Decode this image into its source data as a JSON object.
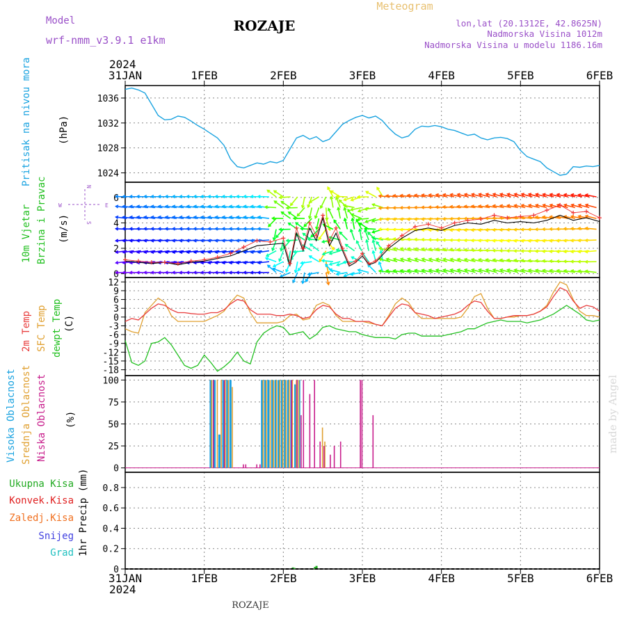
{
  "header": {
    "station_title": "ROZAJE",
    "model_label": "Model",
    "model_name": "wrf-nmm_v3.9.1 e1km",
    "meteogram_label": "Meteogram",
    "lonlat": "lon,lat (20.1312E, 42.8625N)",
    "altitude": "Nadmorska Visina 1012m",
    "model_altitude": "Nadmorska Visina u modelu 1186.16m",
    "footer_station": "ROZAJE",
    "credit": "made by Angel"
  },
  "colors": {
    "pressure": "#1aa3e0",
    "temp2m": "#e83c3c",
    "sfc_temp": "#e0a030",
    "dewpt": "#22c020",
    "high_cloud": "#1a9fe0",
    "mid_cloud": "#e0a030",
    "low_cloud": "#c81e8c",
    "total_precip": "#22aa22",
    "conv_precip": "#e02020",
    "freezing": "#f07020",
    "snow": "#4040e0",
    "hail": "#20c0c0",
    "title_purple": "#9a50c8",
    "meteogram_orange": "#e8c070"
  },
  "chart_data": [
    {
      "panel": "pressure",
      "type": "line",
      "ylabel_rot": "Pritisak na nivou mora",
      "unit": "(hPa)",
      "yticks": [
        1024,
        1028,
        1032,
        1036
      ],
      "ylim": [
        1022.5,
        1038
      ],
      "x_days": [
        0,
        0.083,
        0.167,
        0.25,
        0.333,
        0.417,
        0.5,
        0.583,
        0.667,
        0.75,
        0.833,
        0.917,
        1.0,
        1.083,
        1.167,
        1.25,
        1.333,
        1.417,
        1.5,
        1.583,
        1.667,
        1.75,
        1.833,
        1.917,
        2.0,
        2.083,
        2.167,
        2.25,
        2.333,
        2.417,
        2.5,
        2.583,
        2.667,
        2.75,
        2.833,
        2.917,
        3.0,
        3.083,
        3.167,
        3.25,
        3.333,
        3.417,
        3.5,
        3.583,
        3.667,
        3.75,
        3.833,
        3.917,
        4.0,
        4.083,
        4.167,
        4.25,
        4.333,
        4.417,
        4.5,
        4.583,
        4.667,
        4.75,
        4.833,
        4.917,
        5.0,
        5.083,
        5.167,
        5.25,
        5.333,
        5.417,
        5.5,
        5.583,
        5.667,
        5.75,
        5.833,
        5.917,
        6.0
      ],
      "values": [
        1037.4,
        1037.6,
        1037.3,
        1036.8,
        1035.0,
        1033.2,
        1032.5,
        1032.6,
        1033.1,
        1032.9,
        1032.3,
        1031.6,
        1031.0,
        1030.3,
        1029.6,
        1028.4,
        1026.2,
        1025.0,
        1024.8,
        1025.2,
        1025.6,
        1025.4,
        1025.8,
        1025.6,
        1026.0,
        1027.8,
        1029.6,
        1030.0,
        1029.4,
        1029.8,
        1029.0,
        1029.4,
        1030.6,
        1031.8,
        1032.4,
        1032.9,
        1033.2,
        1032.8,
        1033.1,
        1032.4,
        1031.2,
        1030.2,
        1029.6,
        1029.9,
        1031.0,
        1031.5,
        1031.4,
        1031.6,
        1031.4,
        1031.0,
        1030.8,
        1030.4,
        1030.0,
        1030.2,
        1029.6,
        1029.3,
        1029.6,
        1029.7,
        1029.5,
        1029.0,
        1027.6,
        1026.6,
        1026.2,
        1025.8,
        1024.8,
        1024.2,
        1023.6,
        1023.8,
        1025.0,
        1024.9,
        1025.1,
        1025.0,
        1025.2
      ]
    },
    {
      "panel": "wind",
      "type": "line",
      "ylabel_rot1": "10m Vjetar",
      "ylabel_rot2": "Brzina i Pravac",
      "unit": "(m/s)",
      "compass_n": "N",
      "compass_e": "E",
      "compass_w": "W",
      "compass_s": "S",
      "yticks": [
        0,
        2,
        4,
        6
      ],
      "ylim": [
        -0.3,
        7.2
      ],
      "x_days": [
        0,
        0.167,
        0.333,
        0.5,
        0.667,
        0.833,
        1.0,
        1.167,
        1.333,
        1.5,
        1.667,
        1.833,
        2.0,
        2.083,
        2.167,
        2.25,
        2.333,
        2.417,
        2.5,
        2.583,
        2.667,
        2.75,
        2.833,
        2.917,
        3.0,
        3.083,
        3.167,
        3.333,
        3.5,
        3.667,
        3.833,
        4.0,
        4.167,
        4.333,
        4.5,
        4.667,
        4.833,
        5.0,
        5.167,
        5.333,
        5.5,
        5.667,
        5.833,
        6.0
      ],
      "mean_speed": [
        1.0,
        0.9,
        0.8,
        0.9,
        0.7,
        0.9,
        1.0,
        1.2,
        1.4,
        1.8,
        2.2,
        2.3,
        2.4,
        0.6,
        3.2,
        1.8,
        3.6,
        2.6,
        4.4,
        2.2,
        3.2,
        1.8,
        0.6,
        0.9,
        1.4,
        0.7,
        0.9,
        2.0,
        2.8,
        3.4,
        3.6,
        3.4,
        3.8,
        4.0,
        3.9,
        4.2,
        4.0,
        4.1,
        4.0,
        4.2,
        4.6,
        4.2,
        4.4,
        4.1
      ],
      "gust_speed": [
        1.1,
        1.0,
        0.9,
        0.9,
        0.8,
        1.0,
        1.1,
        1.3,
        1.6,
        2.1,
        2.6,
        2.5,
        2.8,
        0.8,
        3.6,
        2.0,
        4.0,
        3.0,
        4.6,
        2.6,
        3.6,
        2.0,
        0.8,
        1.0,
        1.6,
        0.8,
        1.0,
        2.2,
        3.0,
        3.7,
        3.9,
        3.6,
        4.0,
        4.2,
        4.3,
        4.6,
        4.4,
        4.5,
        4.6,
        5.0,
        5.4,
        4.8,
        4.9,
        4.4
      ]
    },
    {
      "panel": "temperature",
      "type": "line",
      "ylabel_rot1": "2m Temp",
      "ylabel_rot2": "SFC Temp",
      "ylabel_rot3": "dewpt Temp",
      "unit": "(C)",
      "yticks": [
        -18,
        -15,
        -12,
        -9,
        -6,
        -3,
        0,
        3,
        6,
        9,
        12
      ],
      "ylim": [
        -20,
        13.5
      ],
      "x_days": [
        0,
        0.083,
        0.167,
        0.25,
        0.333,
        0.417,
        0.5,
        0.583,
        0.667,
        0.75,
        0.833,
        0.917,
        1.0,
        1.083,
        1.167,
        1.25,
        1.333,
        1.417,
        1.5,
        1.583,
        1.667,
        1.75,
        1.833,
        1.917,
        2.0,
        2.083,
        2.167,
        2.25,
        2.333,
        2.417,
        2.5,
        2.583,
        2.667,
        2.75,
        2.833,
        2.917,
        3.0,
        3.083,
        3.167,
        3.25,
        3.333,
        3.417,
        3.5,
        3.583,
        3.667,
        3.75,
        3.833,
        3.917,
        4.0,
        4.083,
        4.167,
        4.25,
        4.333,
        4.417,
        4.5,
        4.583,
        4.667,
        4.75,
        4.833,
        4.917,
        5.0,
        5.083,
        5.167,
        5.25,
        5.333,
        5.417,
        5.5,
        5.583,
        5.667,
        5.75,
        5.833,
        5.917,
        6.0
      ],
      "series": [
        {
          "name": "2m Temp",
          "values": [
            -1.5,
            -0.5,
            -1.0,
            1.0,
            3.0,
            4.5,
            4.0,
            2.5,
            1.5,
            1.5,
            1.2,
            1.0,
            1.0,
            1.5,
            1.5,
            2.5,
            4.5,
            6.0,
            5.5,
            2.5,
            1.0,
            1.0,
            1.0,
            0.5,
            0.5,
            1.0,
            0.5,
            -0.5,
            0.0,
            2.5,
            4.0,
            3.5,
            1.0,
            -0.5,
            -0.5,
            -1.5,
            -1.5,
            -1.5,
            -2.5,
            -3.0,
            0.0,
            3.0,
            4.5,
            4.0,
            1.5,
            1.0,
            0.5,
            -0.5,
            0.0,
            0.5,
            1.0,
            2.0,
            4.0,
            5.5,
            5.0,
            2.0,
            -0.5,
            -0.5,
            0.0,
            0.5,
            0.5,
            0.5,
            1.0,
            2.0,
            3.5,
            7.0,
            10.0,
            9.0,
            5.5,
            3.0,
            4.0,
            3.5,
            2.0
          ]
        },
        {
          "name": "SFC Temp",
          "values": [
            -4.0,
            -5.0,
            -5.5,
            1.5,
            4.0,
            6.5,
            5.0,
            0.5,
            -1.5,
            -1.5,
            -1.5,
            -1.5,
            -1.5,
            -0.5,
            0.5,
            2.0,
            5.0,
            7.5,
            6.5,
            1.5,
            -2.0,
            -2.0,
            -2.0,
            -2.0,
            -1.5,
            0.5,
            1.0,
            -1.0,
            -0.5,
            4.0,
            5.0,
            4.0,
            0.5,
            -1.5,
            -1.5,
            -1.5,
            -1.5,
            -2.0,
            -2.5,
            -3.0,
            0.5,
            4.5,
            6.5,
            5.0,
            1.5,
            -0.5,
            -0.5,
            -0.5,
            -0.5,
            -0.5,
            -0.5,
            0.0,
            3.0,
            7.0,
            8.0,
            3.0,
            -0.5,
            -0.5,
            0.0,
            0.0,
            0.5,
            0.5,
            1.0,
            2.0,
            4.0,
            8.5,
            12.0,
            11.0,
            6.0,
            2.0,
            0.5,
            0.5,
            0.0
          ]
        },
        {
          "name": "dewpt Temp",
          "values": [
            -8.0,
            -15.5,
            -16.5,
            -15.0,
            -9.0,
            -8.5,
            -7.0,
            -9.5,
            -13.0,
            -16.5,
            -17.5,
            -16.5,
            -13.0,
            -15.5,
            -18.5,
            -17.0,
            -15.0,
            -12.0,
            -15.0,
            -16.0,
            -8.5,
            -5.5,
            -4.0,
            -3.0,
            -3.5,
            -6.0,
            -5.5,
            -5.0,
            -7.5,
            -6.0,
            -3.5,
            -3.0,
            -4.0,
            -4.5,
            -5.0,
            -5.0,
            -6.0,
            -6.5,
            -7.0,
            -7.0,
            -7.0,
            -7.5,
            -6.0,
            -5.5,
            -5.5,
            -6.5,
            -6.5,
            -6.5,
            -6.5,
            -6.0,
            -5.5,
            -5.0,
            -4.0,
            -4.0,
            -3.0,
            -2.0,
            -1.5,
            -1.0,
            -1.5,
            -1.5,
            -1.5,
            -2.0,
            -1.5,
            -1.0,
            0.0,
            1.0,
            2.5,
            4.0,
            2.5,
            1.0,
            -1.0,
            -1.5,
            -1.0
          ]
        }
      ]
    },
    {
      "panel": "clouds",
      "type": "bar",
      "ylabel_rot1": "Visoka Oblacnost",
      "ylabel_rot2": "Srednja Oblacnost",
      "ylabel_rot3": "Niska Oblacnost",
      "unit": "(%)",
      "yticks": [
        0,
        25,
        50,
        75,
        100
      ],
      "ylim": [
        -5,
        105
      ],
      "series": [
        {
          "name": "Visoka Oblacnost",
          "x_days": [
            1.08,
            1.13,
            1.19,
            1.24,
            1.29,
            1.33,
            1.73,
            1.77,
            1.81,
            1.86,
            1.9,
            1.94,
            1.98,
            2.02,
            2.06,
            2.1,
            2.15,
            2.2
          ],
          "values": [
            100,
            100,
            38,
            100,
            100,
            100,
            100,
            100,
            100,
            100,
            100,
            100,
            100,
            100,
            100,
            100,
            95,
            100
          ]
        },
        {
          "name": "Srednja Oblacnost",
          "x_days": [
            1.1,
            1.17,
            1.22,
            1.27,
            1.31,
            1.36,
            1.75,
            1.79,
            1.84,
            1.88,
            1.92,
            1.96,
            2.0,
            2.04,
            2.08,
            2.12,
            2.17,
            2.2,
            2.5,
            2.53
          ],
          "values": [
            100,
            100,
            100,
            100,
            100,
            92,
            100,
            100,
            100,
            100,
            100,
            100,
            100,
            100,
            100,
            100,
            100,
            100,
            46,
            30
          ]
        },
        {
          "name": "Niska Oblacnost",
          "x_days": [
            1.12,
            1.26,
            1.5,
            1.53,
            1.67,
            1.71,
            2.11,
            2.18,
            2.23,
            2.26,
            2.34,
            2.4,
            2.47,
            2.52,
            2.6,
            2.65,
            2.73,
            2.98,
            3.0,
            3.14
          ],
          "values": [
            100,
            100,
            4,
            4,
            4,
            4,
            100,
            100,
            60,
            100,
            84,
            100,
            30,
            25,
            15,
            25,
            30,
            100,
            100,
            60
          ]
        }
      ]
    },
    {
      "panel": "precip",
      "type": "bar",
      "ylabel_rot": "1hr Precip (mm)",
      "yticks": [
        0,
        0.2,
        0.4,
        0.6,
        0.8
      ],
      "ylim": [
        0,
        0.95
      ],
      "legend": [
        "Ukupna Kisa",
        "Konvek.Kisa",
        "Zaledj.Kisa",
        "Snijeg",
        "Grad"
      ],
      "series": [
        {
          "name": "Ukupna Kisa",
          "x_days": [
            2.12,
            2.14,
            2.4,
            2.42
          ],
          "values": [
            0.015,
            0.01,
            0.02,
            0.03
          ]
        }
      ]
    }
  ],
  "time_axis": {
    "year": "2024",
    "ticks": [
      "31JAN",
      "1FEB",
      "2FEB",
      "3FEB",
      "4FEB",
      "5FEB",
      "6FEB"
    ]
  }
}
